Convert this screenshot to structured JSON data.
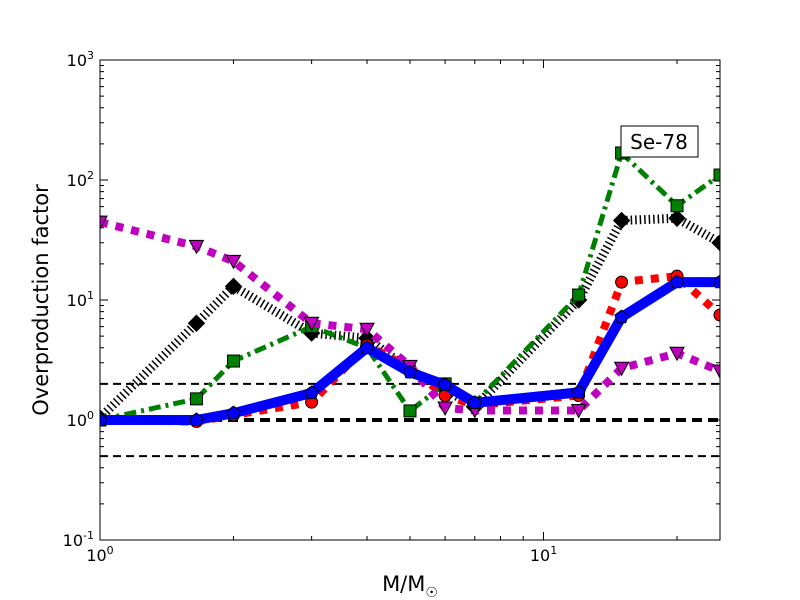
{
  "chart_data": {
    "type": "line",
    "title": "",
    "annotation": "Se-78",
    "xlabel": "M/M",
    "xlabel_sub": "☉",
    "ylabel": "Overproduction factor",
    "xscale": "log",
    "yscale": "log",
    "xlim": [
      1,
      25
    ],
    "ylim": [
      0.1,
      1000
    ],
    "x_ticks": [
      {
        "value": 1,
        "base": "10",
        "exp": "0"
      },
      {
        "value": 10,
        "base": "10",
        "exp": "1"
      }
    ],
    "y_ticks": [
      {
        "value": 0.1,
        "base": "10",
        "exp": "-1"
      },
      {
        "value": 1,
        "base": "10",
        "exp": "0"
      },
      {
        "value": 10,
        "base": "10",
        "exp": "1"
      },
      {
        "value": 100,
        "base": "10",
        "exp": "2"
      },
      {
        "value": 1000,
        "base": "10",
        "exp": "3"
      }
    ],
    "reference_lines": [
      0.5,
      1,
      2
    ],
    "x": [
      1,
      1.65,
      2,
      3,
      4,
      5,
      6,
      7,
      12,
      15,
      20,
      25
    ],
    "series": [
      {
        "name": "black-diamond",
        "color": "#000000",
        "marker": "diamond",
        "style": "hatched",
        "values": [
          1.04,
          6.4,
          13,
          5.3,
          4.8,
          2.6,
          1.8,
          1.28,
          10,
          46,
          48,
          30
        ]
      },
      {
        "name": "green-square",
        "color": "#008000",
        "marker": "square",
        "style": "dashdot",
        "values": [
          1.0,
          1.5,
          3.1,
          6.0,
          4.0,
          1.19,
          2.0,
          1.38,
          11,
          168,
          61,
          110
        ]
      },
      {
        "name": "red-circle",
        "color": "#ff0000",
        "marker": "circle",
        "style": "dotted",
        "values": [
          1.0,
          0.97,
          1.1,
          1.41,
          4.2,
          2.7,
          1.6,
          1.33,
          1.6,
          14.1,
          15.8,
          7.5
        ]
      },
      {
        "name": "magenta-triangle",
        "color": "#bf00bf",
        "marker": "triangle-down",
        "style": "dotted",
        "values": [
          44.6,
          28,
          21,
          6.4,
          5.7,
          2.8,
          1.26,
          1.2,
          1.2,
          2.7,
          3.6,
          2.56
        ]
      },
      {
        "name": "blue-pentagon",
        "color": "#0000ff",
        "marker": "pentagon",
        "style": "solid",
        "values": [
          1.0,
          1.0,
          1.14,
          1.68,
          4.0,
          2.5,
          1.96,
          1.39,
          1.7,
          7.2,
          14.1,
          14.1
        ]
      }
    ]
  }
}
